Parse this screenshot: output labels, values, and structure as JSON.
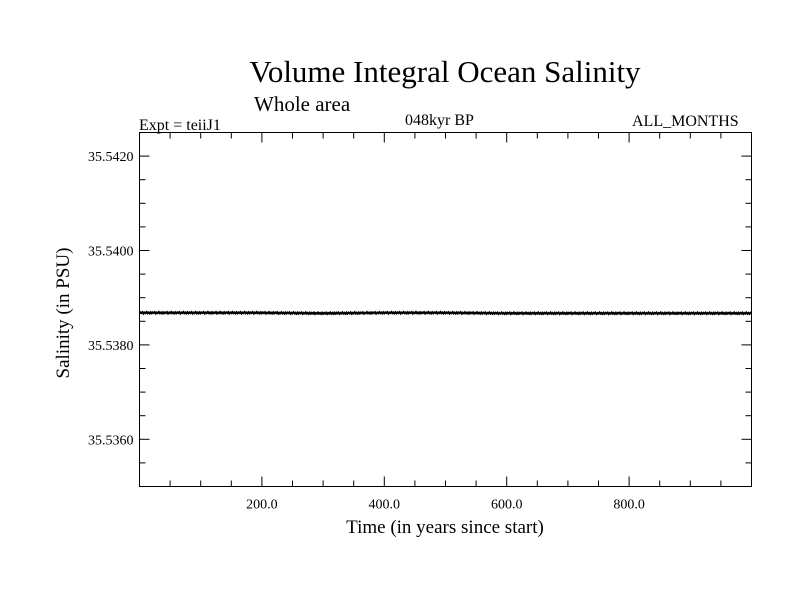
{
  "header": {
    "title": "Volume Integral Ocean Salinity",
    "subtitle": "Whole area",
    "experiment": "Expt = teiiJ1",
    "epoch": "048kyr BP",
    "months": "ALL_MONTHS"
  },
  "chart_data": {
    "type": "line",
    "title": "Volume Integral Ocean Salinity",
    "subtitle": "Whole area",
    "xlabel": "Time (in years since start)",
    "ylabel": "Salinity (in PSU)",
    "xlim": [
      0,
      1000
    ],
    "ylim": [
      35.535,
      35.5425
    ],
    "x_ticks": [
      200.0,
      400.0,
      600.0,
      800.0
    ],
    "x_tick_labels": [
      "200.0",
      "400.0",
      "600.0",
      "800.0"
    ],
    "y_ticks": [
      35.536,
      35.538,
      35.54,
      35.542
    ],
    "y_tick_labels": [
      "35.5360",
      "35.5380",
      "35.5400",
      "35.5420"
    ],
    "grid": false,
    "series": [
      {
        "x": [
          0,
          100,
          200,
          300,
          400,
          500,
          600,
          700,
          800,
          900,
          1000
        ],
        "values": [
          35.53868,
          35.53868,
          35.53868,
          35.53867,
          35.53868,
          35.53868,
          35.53867,
          35.53867,
          35.53867,
          35.53867,
          35.53867
        ],
        "color": "#000000"
      }
    ]
  }
}
